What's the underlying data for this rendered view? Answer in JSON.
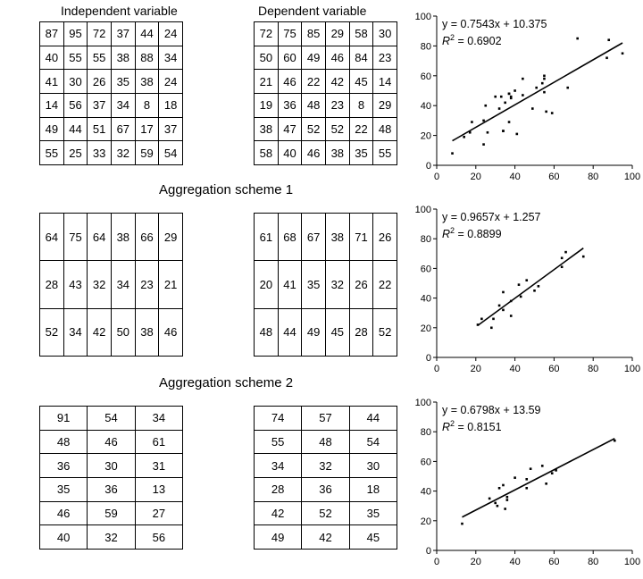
{
  "header": {
    "independent_label": "Independent variable",
    "dependent_label": "Dependent variable"
  },
  "section_titles": {
    "scheme1": "Aggregation scheme 1",
    "scheme2": "Aggregation scheme 2"
  },
  "grids": {
    "original_independent": [
      [
        "87",
        "95",
        "72",
        "37",
        "44",
        "24"
      ],
      [
        "40",
        "55",
        "55",
        "38",
        "88",
        "34"
      ],
      [
        "41",
        "30",
        "26",
        "35",
        "38",
        "24"
      ],
      [
        "14",
        "56",
        "37",
        "34",
        "8",
        "18"
      ],
      [
        "49",
        "44",
        "51",
        "67",
        "17",
        "37"
      ],
      [
        "55",
        "25",
        "33",
        "32",
        "59",
        "54"
      ]
    ],
    "original_dependent": [
      [
        "72",
        "75",
        "85",
        "29",
        "58",
        "30"
      ],
      [
        "50",
        "60",
        "49",
        "46",
        "84",
        "23"
      ],
      [
        "21",
        "46",
        "22",
        "42",
        "45",
        "14"
      ],
      [
        "19",
        "36",
        "48",
        "23",
        "8",
        "29"
      ],
      [
        "38",
        "47",
        "52",
        "52",
        "22",
        "48"
      ],
      [
        "58",
        "40",
        "46",
        "38",
        "35",
        "55"
      ]
    ],
    "scheme1_independent": [
      [
        "64",
        "75",
        "64",
        "38",
        "66",
        "29"
      ],
      [
        "28",
        "43",
        "32",
        "34",
        "23",
        "21"
      ],
      [
        "52",
        "34",
        "42",
        "50",
        "38",
        "46"
      ]
    ],
    "scheme1_dependent": [
      [
        "61",
        "68",
        "67",
        "38",
        "71",
        "26"
      ],
      [
        "20",
        "41",
        "35",
        "32",
        "26",
        "22"
      ],
      [
        "48",
        "44",
        "49",
        "45",
        "28",
        "52"
      ]
    ],
    "scheme2_independent": [
      [
        "91",
        "54",
        "34"
      ],
      [
        "48",
        "46",
        "61"
      ],
      [
        "36",
        "30",
        "31"
      ],
      [
        "35",
        "36",
        "13"
      ],
      [
        "46",
        "59",
        "27"
      ],
      [
        "40",
        "32",
        "56"
      ]
    ],
    "scheme2_dependent": [
      [
        "74",
        "57",
        "44"
      ],
      [
        "55",
        "48",
        "54"
      ],
      [
        "34",
        "32",
        "30"
      ],
      [
        "28",
        "36",
        "18"
      ],
      [
        "42",
        "52",
        "35"
      ],
      [
        "49",
        "42",
        "45"
      ]
    ]
  },
  "chart_data": [
    {
      "type": "scatter",
      "title": "",
      "xlabel": "",
      "ylabel": "",
      "xlim": [
        0,
        100
      ],
      "ylim": [
        0,
        100
      ],
      "x_ticks": [
        "0",
        "20",
        "40",
        "60",
        "80",
        "100"
      ],
      "y_ticks": [
        "0",
        "20",
        "40",
        "60",
        "80",
        "100"
      ],
      "grid": false,
      "equation": "y = 0.7543x + 10.375",
      "r2_label": "R",
      "r2_sup": "2",
      "r2_value": " = 0.6902",
      "slope": 0.7543,
      "intercept": 10.375,
      "x": [
        87,
        95,
        72,
        37,
        44,
        24,
        40,
        55,
        55,
        38,
        88,
        34,
        41,
        30,
        26,
        35,
        38,
        24,
        14,
        56,
        37,
        34,
        8,
        18,
        49,
        44,
        51,
        67,
        17,
        37,
        55,
        25,
        33,
        32,
        59,
        54
      ],
      "y": [
        72,
        75,
        85,
        29,
        58,
        30,
        50,
        60,
        49,
        46,
        84,
        23,
        21,
        46,
        22,
        42,
        45,
        14,
        19,
        36,
        48,
        23,
        8,
        29,
        38,
        47,
        52,
        52,
        22,
        48,
        58,
        40,
        46,
        38,
        35,
        55
      ]
    },
    {
      "type": "scatter",
      "title": "",
      "xlabel": "",
      "ylabel": "",
      "xlim": [
        0,
        100
      ],
      "ylim": [
        0,
        100
      ],
      "x_ticks": [
        "0",
        "20",
        "40",
        "60",
        "80",
        "100"
      ],
      "y_ticks": [
        "0",
        "20",
        "40",
        "60",
        "80",
        "100"
      ],
      "grid": false,
      "equation": "y = 0.9657x + 1.257",
      "r2_label": "R",
      "r2_sup": "2",
      "r2_value": " = 0.8899",
      "slope": 0.9657,
      "intercept": 1.257,
      "x": [
        64,
        75,
        64,
        38,
        66,
        29,
        28,
        43,
        32,
        34,
        23,
        21,
        52,
        34,
        42,
        50,
        38,
        46
      ],
      "y": [
        61,
        68,
        67,
        38,
        71,
        26,
        20,
        41,
        35,
        32,
        26,
        22,
        48,
        44,
        49,
        45,
        28,
        52
      ]
    },
    {
      "type": "scatter",
      "title": "",
      "xlabel": "",
      "ylabel": "",
      "xlim": [
        0,
        100
      ],
      "ylim": [
        0,
        100
      ],
      "x_ticks": [
        "0",
        "20",
        "40",
        "60",
        "80",
        "100"
      ],
      "y_ticks": [
        "0",
        "20",
        "40",
        "60",
        "80",
        "100"
      ],
      "grid": false,
      "equation": "y = 0.6798x + 13.59",
      "r2_label": "R",
      "r2_sup": "2",
      "r2_value": " = 0.8151",
      "slope": 0.6798,
      "intercept": 13.59,
      "x": [
        91,
        54,
        34,
        48,
        46,
        61,
        36,
        30,
        31,
        35,
        36,
        13,
        46,
        59,
        27,
        40,
        32,
        56
      ],
      "y": [
        74,
        57,
        44,
        55,
        48,
        54,
        34,
        32,
        30,
        28,
        36,
        18,
        42,
        52,
        35,
        49,
        42,
        45
      ]
    }
  ]
}
